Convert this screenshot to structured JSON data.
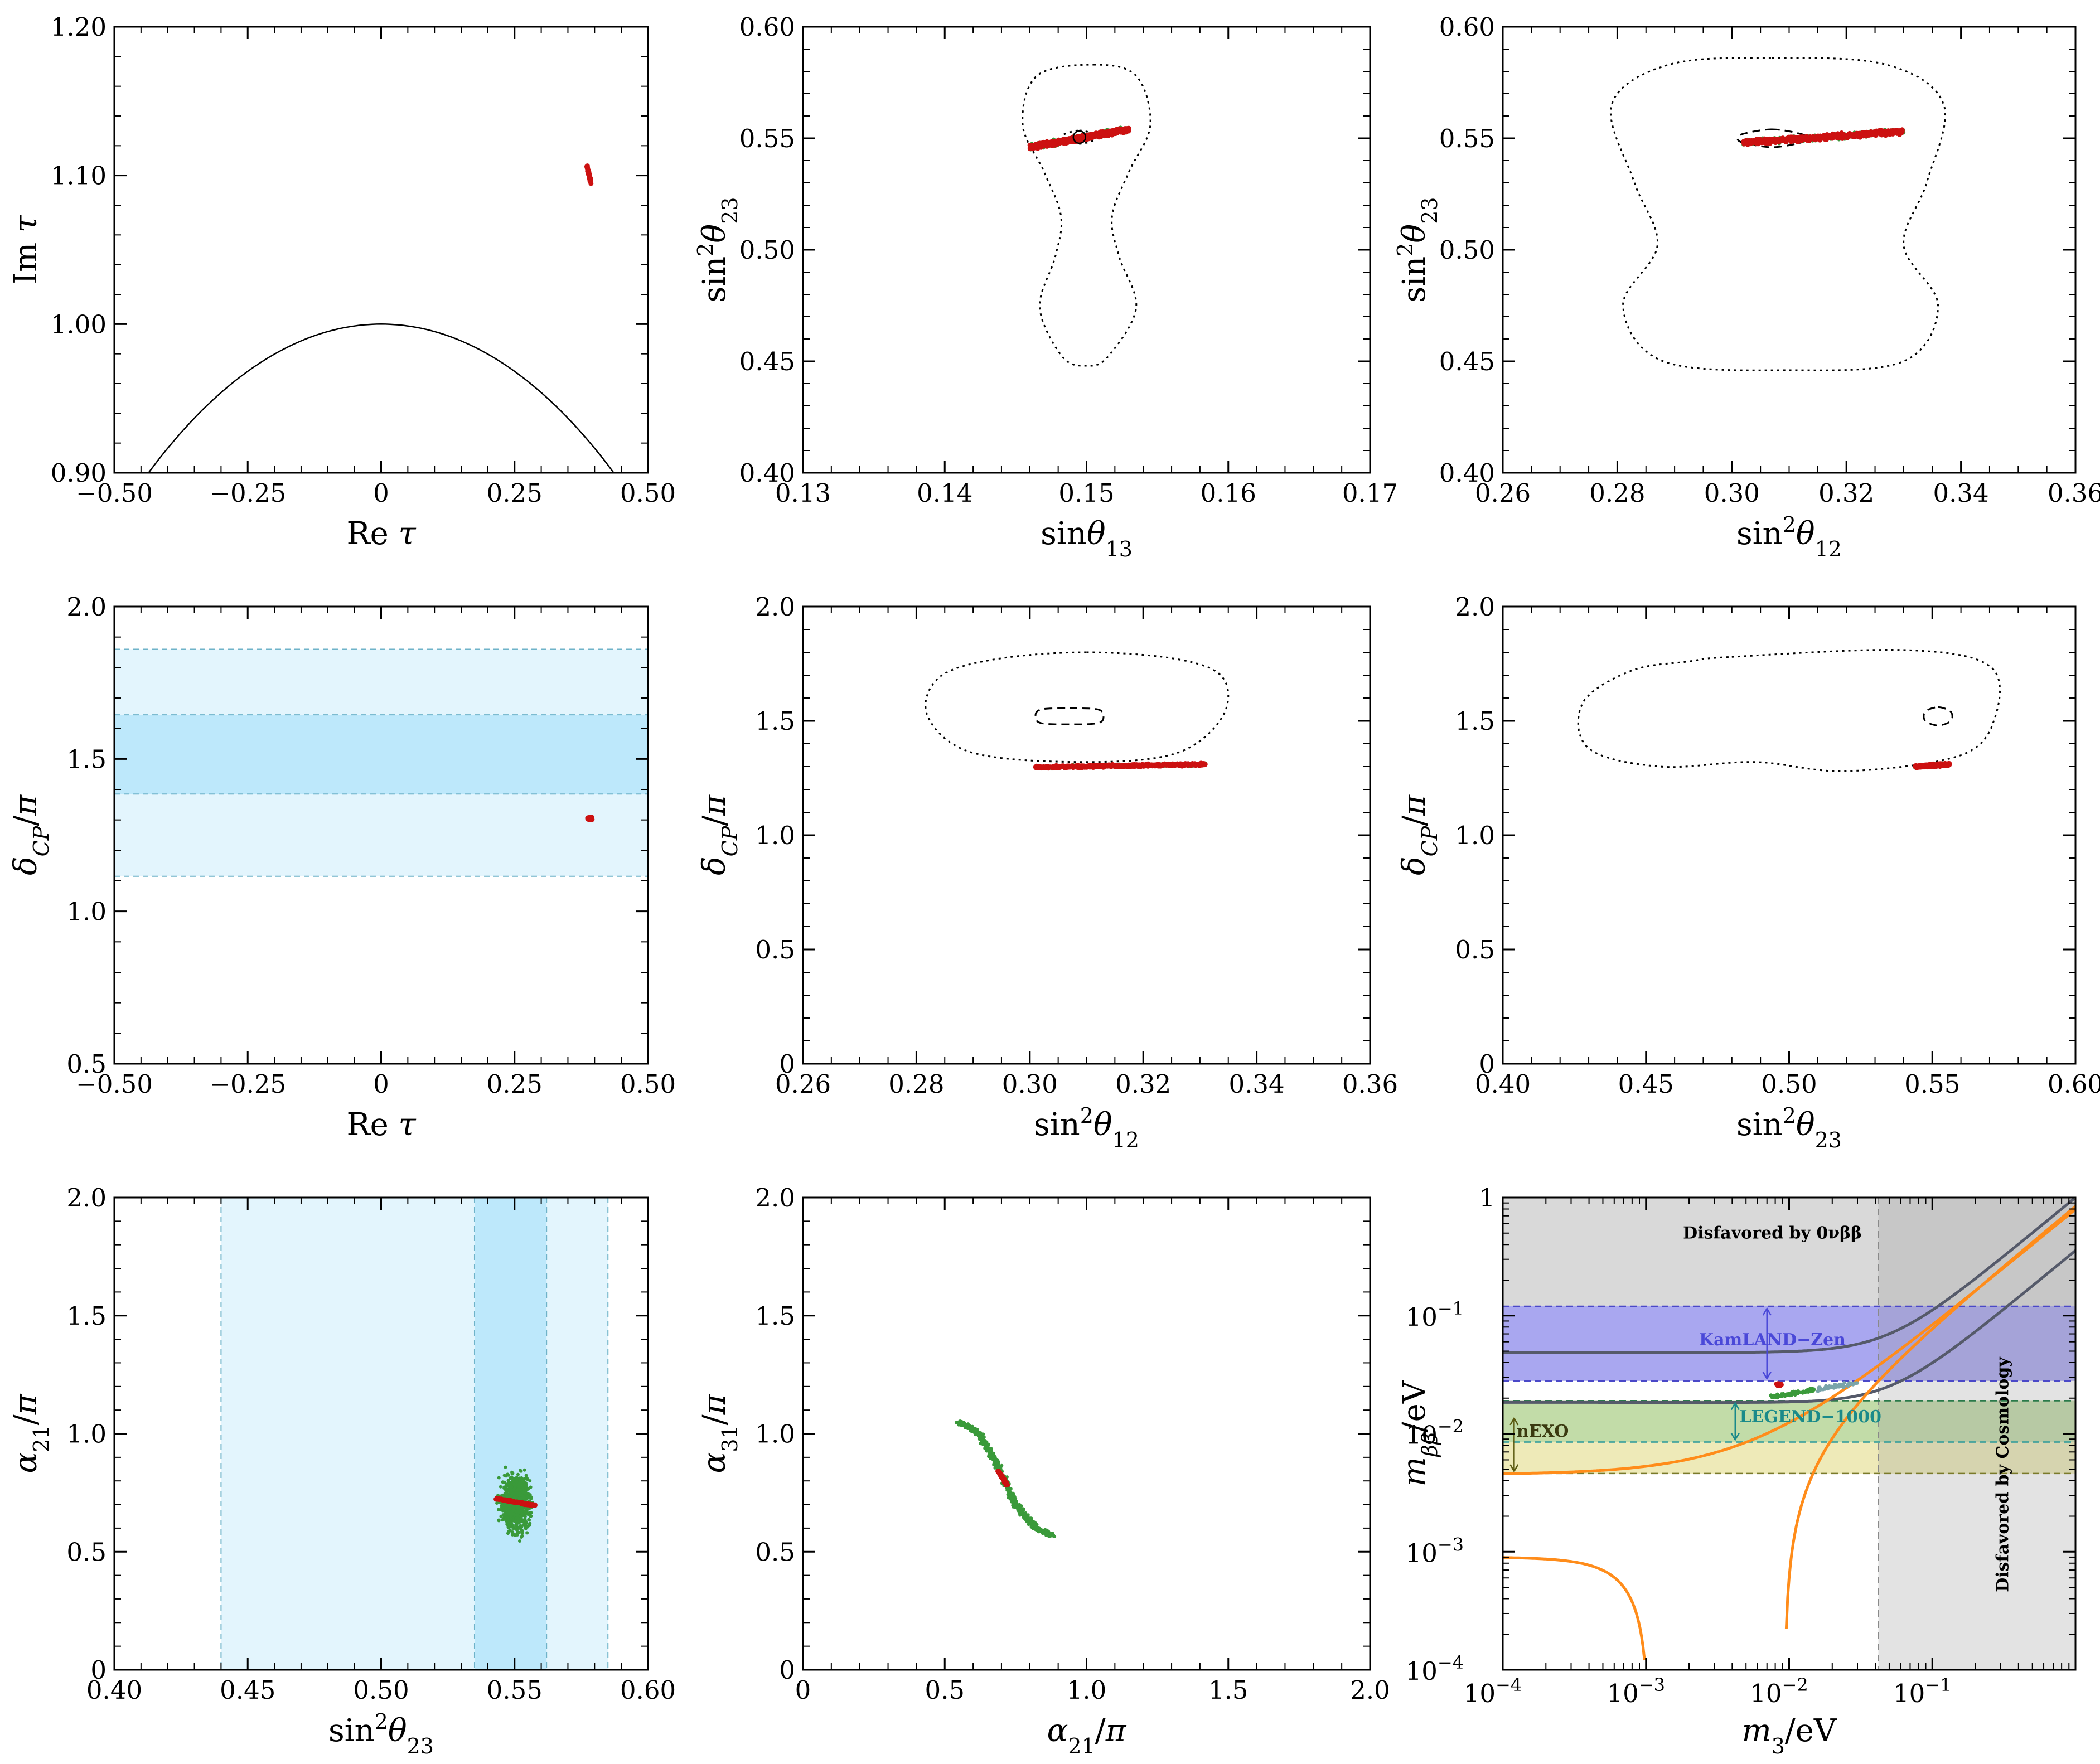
{
  "figure": {
    "layout": "3x3 grid of scatter panels",
    "colors": {
      "frame": "#000000",
      "green_points": "#3a9a3a",
      "red_points": "#cc1111",
      "band_1sigma": "#bde8fb",
      "band_3sigma": "#e3f5fd",
      "band_edge": "#6fb3c9",
      "orange_curve": "#ff8c1a",
      "cosmo_band": "#d9d9d9",
      "kamland_band": "#a9a7f0",
      "legend_band": "#c2dca8",
      "nexo_band": "#eeeab8"
    }
  },
  "chart_data": [
    {
      "id": "p1",
      "type": "scatter",
      "xlabel": "Re τ",
      "ylabel": "Im τ",
      "xlim": [
        -0.5,
        0.5
      ],
      "ylim": [
        0.9,
        1.2
      ],
      "xticks": [
        "−0.50",
        "−0.25",
        "0",
        "0.25",
        "0.50"
      ],
      "yticks": [
        "0.90",
        "1.00",
        "1.10",
        "1.20"
      ],
      "fundamental_domain_arc": "|τ| = 1",
      "red_region": {
        "x": [
          0.385,
          0.395
        ],
        "y": [
          1.095,
          1.105
        ]
      }
    },
    {
      "id": "p2",
      "type": "scatter",
      "xlabel": "sinθ13",
      "ylabel": "sin²θ23",
      "xlim": [
        0.13,
        0.17
      ],
      "ylim": [
        0.4,
        0.6
      ],
      "xticks": [
        "0.13",
        "0.14",
        "0.15",
        "0.16",
        "0.17"
      ],
      "yticks": [
        "0.40",
        "0.45",
        "0.50",
        "0.55",
        "0.60"
      ],
      "points_band": {
        "x": [
          0.146,
          0.153
        ],
        "y_left": 0.546,
        "y_right": 0.554
      },
      "best_fit": [
        0.1495,
        0.5505
      ]
    },
    {
      "id": "p3",
      "type": "scatter",
      "xlabel": "sin²θ12",
      "ylabel": "sin²θ23",
      "xlim": [
        0.26,
        0.36
      ],
      "ylim": [
        0.4,
        0.6
      ],
      "xticks": [
        "0.26",
        "0.28",
        "0.30",
        "0.32",
        "0.34",
        "0.36"
      ],
      "yticks": [
        "0.40",
        "0.45",
        "0.50",
        "0.55",
        "0.60"
      ],
      "points_band": {
        "x": [
          0.302,
          0.33
        ],
        "y_left": 0.548,
        "y_right": 0.553
      },
      "best_fit": [
        0.307,
        0.55
      ]
    },
    {
      "id": "p4",
      "type": "scatter",
      "xlabel": "Re τ",
      "ylabel": "δCP/π",
      "xlim": [
        -0.5,
        0.5
      ],
      "ylim": [
        0.5,
        2.0
      ],
      "xticks": [
        "−0.50",
        "−0.25",
        "0",
        "0.25",
        "0.50"
      ],
      "yticks": [
        "0.5",
        "1.0",
        "1.5",
        "2.0"
      ],
      "band_1sigma": [
        1.385,
        1.645
      ],
      "band_3sigma": [
        1.115,
        1.86
      ],
      "red_region": {
        "x": 0.39,
        "y": 1.305
      }
    },
    {
      "id": "p5",
      "type": "scatter",
      "xlabel": "sin²θ12",
      "ylabel": "δCP/π",
      "xlim": [
        0.26,
        0.36
      ],
      "ylim": [
        0,
        2.0
      ],
      "xticks": [
        "0.26",
        "0.28",
        "0.30",
        "0.32",
        "0.34",
        "0.36"
      ],
      "yticks": [
        "0",
        "0.5",
        "1.0",
        "1.5",
        "2.0"
      ],
      "points_band": {
        "x": [
          0.301,
          0.331
        ],
        "y_left": 1.297,
        "y_right": 1.31
      },
      "best_fit": [
        0.307,
        1.52
      ]
    },
    {
      "id": "p6",
      "type": "scatter",
      "xlabel": "sin²θ23",
      "ylabel": "δCP/π",
      "xlim": [
        0.4,
        0.6
      ],
      "ylim": [
        0,
        2.0
      ],
      "xticks": [
        "0.40",
        "0.45",
        "0.50",
        "0.55",
        "0.60"
      ],
      "yticks": [
        "0",
        "0.5",
        "1.0",
        "1.5",
        "2.0"
      ],
      "points_band": {
        "x": [
          0.544,
          0.556
        ],
        "y_left": 1.3,
        "y_right": 1.31
      },
      "best_fit": [
        0.552,
        1.52
      ]
    },
    {
      "id": "p7",
      "type": "scatter",
      "xlabel": "sin²θ23",
      "ylabel": "α21/π",
      "xlim": [
        0.4,
        0.6
      ],
      "ylim": [
        0,
        2.0
      ],
      "xticks": [
        "0.40",
        "0.45",
        "0.50",
        "0.55",
        "0.60"
      ],
      "yticks": [
        "0",
        "0.5",
        "1.0",
        "1.5",
        "2.0"
      ],
      "band_1sigma": [
        0.535,
        0.562
      ],
      "band_3sigma": [
        0.44,
        0.585
      ],
      "green_cloud": {
        "x": [
          0.543,
          0.558
        ],
        "y": [
          0.53,
          0.88
        ]
      },
      "red_line": {
        "x": [
          0.543,
          0.558
        ],
        "y": [
          0.725,
          0.695
        ]
      }
    },
    {
      "id": "p8",
      "type": "scatter",
      "xlabel": "α21/π",
      "ylabel": "α31/π",
      "xlim": [
        0,
        2.0
      ],
      "ylim": [
        0,
        2.0
      ],
      "xticks": [
        "0",
        "0.5",
        "1.0",
        "1.5",
        "2.0"
      ],
      "yticks": [
        "0",
        "0.5",
        "1.0",
        "1.5",
        "2.0"
      ],
      "green_curve": [
        [
          0.55,
          1.05
        ],
        [
          0.62,
          1.0
        ],
        [
          0.69,
          0.86
        ],
        [
          0.75,
          0.7
        ],
        [
          0.82,
          0.6
        ],
        [
          0.88,
          0.57
        ]
      ],
      "red_segment": [
        [
          0.69,
          0.84
        ],
        [
          0.72,
          0.78
        ]
      ]
    },
    {
      "id": "p9",
      "type": "line",
      "xlabel": "m3/eV",
      "ylabel": "mββ/eV",
      "xscale": "log",
      "yscale": "log",
      "xlim": [
        0.0001,
        1
      ],
      "ylim": [
        0.0001,
        1
      ],
      "xticks": [
        "10",
        "10",
        "10",
        "10"
      ],
      "xtick_exponents": [
        "−4",
        "−3",
        "−2",
        "−1"
      ],
      "ytick_top": "1",
      "yticks": [
        "10",
        "10",
        "10",
        "10"
      ],
      "ytick_exponents": [
        "−1",
        "−2",
        "−3",
        "−4"
      ],
      "cosmology_bound_m3": 0.042,
      "kamland_zen": [
        0.028,
        0.12
      ],
      "legend_1000": [
        0.0085,
        0.019
      ],
      "nexo": [
        0.0046,
        0.019
      ],
      "labels": {
        "top": "Disfavored by 0νββ",
        "kamland": "KamLAND−Zen",
        "legend": "LEGEND−1000",
        "nexo": "nEXO",
        "cosmology": "Disfavored by Cosmology"
      },
      "points": {
        "m3": [
          0.0075,
          0.03
        ],
        "mbb": [
          0.0205,
          0.027
        ]
      }
    }
  ]
}
